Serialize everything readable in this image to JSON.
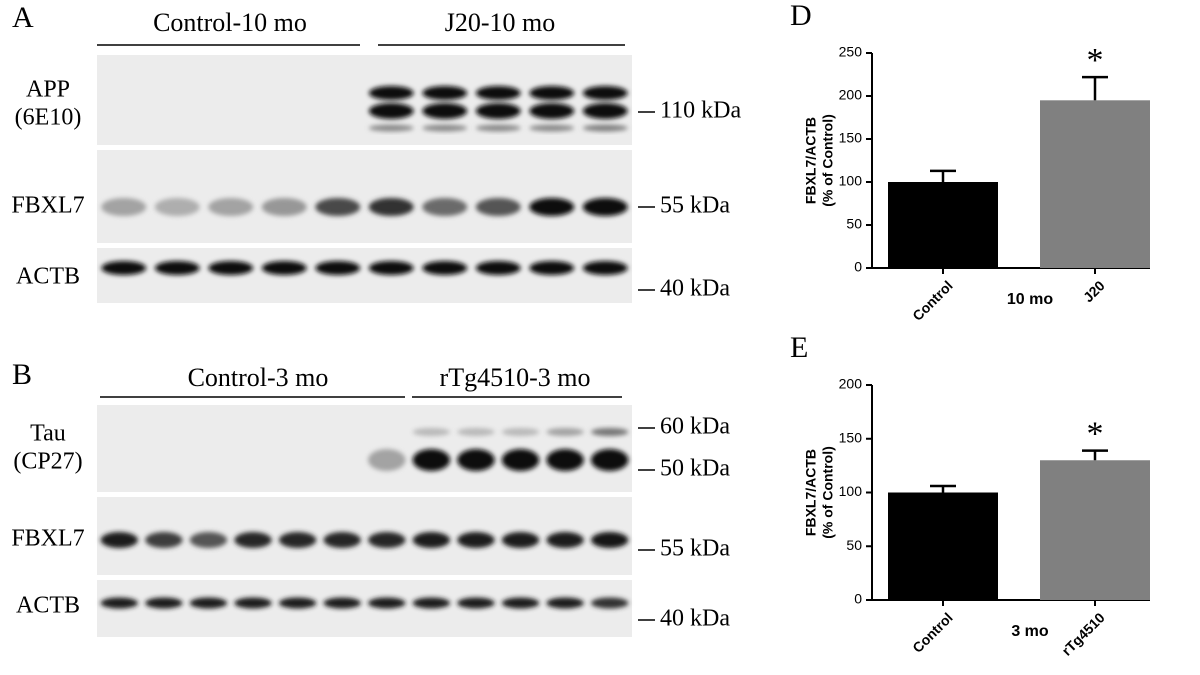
{
  "blots": [
    {
      "panel": "A",
      "groups": [
        {
          "label": "Control-10 mo"
        },
        {
          "label": "J20-10 mo"
        }
      ],
      "rows": [
        {
          "label": [
            "APP",
            "(6E10)"
          ],
          "markers": [
            "110 kDa"
          ]
        },
        {
          "label": [
            "FBXL7"
          ],
          "markers": [
            "55 kDa"
          ]
        },
        {
          "label": [
            "ACTB"
          ],
          "markers": [
            "40 kDa"
          ]
        }
      ]
    },
    {
      "panel": "B",
      "groups": [
        {
          "label": "Control-3 mo"
        },
        {
          "label": "rTg4510-3 mo"
        }
      ],
      "rows": [
        {
          "label": [
            "Tau",
            "(CP27)"
          ],
          "markers": [
            "60 kDa",
            "50 kDa"
          ]
        },
        {
          "label": [
            "FBXL7"
          ],
          "markers": [
            "55 kDa"
          ]
        },
        {
          "label": [
            "ACTB"
          ],
          "markers": [
            "40 kDa"
          ]
        }
      ]
    }
  ],
  "chart_data": [
    {
      "type": "bar",
      "panel": "D",
      "ylabel": [
        "FBXL7/ACTB",
        "(% of Control)"
      ],
      "xlabel": "10 mo",
      "categories": [
        "Control",
        "J20"
      ],
      "values": [
        100,
        195
      ],
      "errors": [
        13,
        27
      ],
      "colors": [
        "#000000",
        "#808080"
      ],
      "annotation": "*",
      "ylim": [
        0,
        250
      ],
      "yticks": [
        0,
        50,
        100,
        150,
        200,
        250
      ]
    },
    {
      "type": "bar",
      "panel": "E",
      "ylabel": [
        "FBXL7/ACTB",
        "(% of Control)"
      ],
      "xlabel": "3 mo",
      "categories": [
        "Control",
        "rTg4510"
      ],
      "values": [
        100,
        130
      ],
      "errors": [
        6,
        9
      ],
      "colors": [
        "#000000",
        "#808080"
      ],
      "annotation": "*",
      "ylim": [
        0,
        200
      ],
      "yticks": [
        0,
        50,
        100,
        150,
        200
      ]
    }
  ]
}
